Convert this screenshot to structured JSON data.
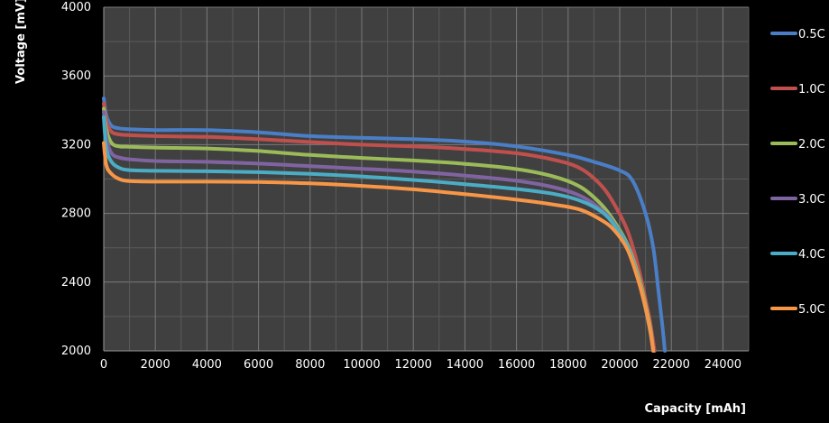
{
  "chart_data": {
    "type": "line",
    "xlabel": "Capacity [mAh]",
    "ylabel": "Voltage [mV]",
    "xlim": [
      0,
      25000
    ],
    "ylim": [
      2000,
      4000
    ],
    "x_ticks": [
      0,
      2000,
      4000,
      6000,
      8000,
      10000,
      12000,
      14000,
      16000,
      18000,
      20000,
      22000,
      24000
    ],
    "y_ticks": [
      2000,
      2400,
      2800,
      3200,
      3600,
      4000
    ],
    "grid": true,
    "legend_position": "right",
    "plot_background": "#404040",
    "series": [
      {
        "name": "0.5C",
        "color": "#4a7ec6",
        "points": [
          [
            0,
            3470
          ],
          [
            100,
            3370
          ],
          [
            300,
            3310
          ],
          [
            600,
            3295
          ],
          [
            1000,
            3290
          ],
          [
            2000,
            3285
          ],
          [
            4000,
            3285
          ],
          [
            6000,
            3272
          ],
          [
            8000,
            3250
          ],
          [
            10000,
            3240
          ],
          [
            12000,
            3232
          ],
          [
            14000,
            3218
          ],
          [
            16000,
            3190
          ],
          [
            18000,
            3140
          ],
          [
            19000,
            3100
          ],
          [
            20000,
            3050
          ],
          [
            20500,
            2990
          ],
          [
            21000,
            2800
          ],
          [
            21300,
            2600
          ],
          [
            21500,
            2350
          ],
          [
            21650,
            2150
          ],
          [
            21750,
            2000
          ]
        ]
      },
      {
        "name": "1.0C",
        "color": "#c0504d",
        "points": [
          [
            0,
            3440
          ],
          [
            100,
            3340
          ],
          [
            300,
            3275
          ],
          [
            600,
            3260
          ],
          [
            1000,
            3255
          ],
          [
            2000,
            3250
          ],
          [
            4000,
            3245
          ],
          [
            6000,
            3232
          ],
          [
            8000,
            3215
          ],
          [
            10000,
            3200
          ],
          [
            12000,
            3190
          ],
          [
            14000,
            3175
          ],
          [
            16000,
            3150
          ],
          [
            17500,
            3110
          ],
          [
            18500,
            3060
          ],
          [
            19300,
            2960
          ],
          [
            19800,
            2850
          ],
          [
            20300,
            2700
          ],
          [
            20700,
            2500
          ],
          [
            21000,
            2300
          ],
          [
            21200,
            2150
          ],
          [
            21350,
            2000
          ]
        ]
      },
      {
        "name": "2.0C",
        "color": "#9bbb59",
        "points": [
          [
            0,
            3410
          ],
          [
            100,
            3290
          ],
          [
            300,
            3210
          ],
          [
            600,
            3190
          ],
          [
            1000,
            3188
          ],
          [
            2000,
            3183
          ],
          [
            4000,
            3178
          ],
          [
            6000,
            3163
          ],
          [
            8000,
            3140
          ],
          [
            10000,
            3123
          ],
          [
            12000,
            3108
          ],
          [
            14000,
            3088
          ],
          [
            16000,
            3058
          ],
          [
            17500,
            3012
          ],
          [
            18500,
            2952
          ],
          [
            19300,
            2850
          ],
          [
            19800,
            2750
          ],
          [
            20300,
            2620
          ],
          [
            20700,
            2450
          ],
          [
            21000,
            2270
          ],
          [
            21200,
            2120
          ],
          [
            21300,
            2000
          ]
        ]
      },
      {
        "name": "3.0C",
        "color": "#8064a2",
        "points": [
          [
            0,
            3390
          ],
          [
            100,
            3240
          ],
          [
            300,
            3150
          ],
          [
            600,
            3125
          ],
          [
            1000,
            3115
          ],
          [
            2000,
            3105
          ],
          [
            4000,
            3100
          ],
          [
            6000,
            3090
          ],
          [
            8000,
            3075
          ],
          [
            10000,
            3060
          ],
          [
            12000,
            3043
          ],
          [
            14000,
            3020
          ],
          [
            16000,
            2990
          ],
          [
            17500,
            2950
          ],
          [
            18500,
            2900
          ],
          [
            19300,
            2820
          ],
          [
            19800,
            2735
          ],
          [
            20300,
            2610
          ],
          [
            20700,
            2430
          ],
          [
            21000,
            2250
          ],
          [
            21200,
            2100
          ],
          [
            21300,
            2000
          ]
        ]
      },
      {
        "name": "4.0C",
        "color": "#4bacc6",
        "points": [
          [
            0,
            3360
          ],
          [
            100,
            3180
          ],
          [
            300,
            3100
          ],
          [
            600,
            3065
          ],
          [
            1000,
            3052
          ],
          [
            2000,
            3048
          ],
          [
            4000,
            3045
          ],
          [
            6000,
            3040
          ],
          [
            8000,
            3030
          ],
          [
            10000,
            3015
          ],
          [
            12000,
            2995
          ],
          [
            14000,
            2970
          ],
          [
            16000,
            2942
          ],
          [
            17500,
            2912
          ],
          [
            18500,
            2872
          ],
          [
            19300,
            2810
          ],
          [
            19800,
            2730
          ],
          [
            20300,
            2610
          ],
          [
            20700,
            2430
          ],
          [
            21000,
            2250
          ],
          [
            21200,
            2100
          ],
          [
            21300,
            2000
          ]
        ]
      },
      {
        "name": "5.0C",
        "color": "#f79646",
        "points": [
          [
            0,
            3210
          ],
          [
            100,
            3080
          ],
          [
            300,
            3030
          ],
          [
            600,
            3000
          ],
          [
            1000,
            2988
          ],
          [
            2000,
            2985
          ],
          [
            4000,
            2985
          ],
          [
            6000,
            2983
          ],
          [
            8000,
            2975
          ],
          [
            10000,
            2960
          ],
          [
            12000,
            2940
          ],
          [
            14000,
            2912
          ],
          [
            16000,
            2880
          ],
          [
            17500,
            2850
          ],
          [
            18500,
            2820
          ],
          [
            19300,
            2760
          ],
          [
            19800,
            2700
          ],
          [
            20300,
            2590
          ],
          [
            20700,
            2420
          ],
          [
            21000,
            2250
          ],
          [
            21200,
            2100
          ],
          [
            21300,
            2000
          ]
        ]
      }
    ]
  }
}
